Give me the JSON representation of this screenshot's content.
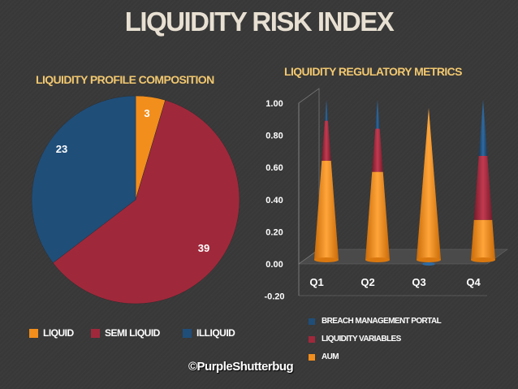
{
  "title": "LIQUIDITY RISK INDEX",
  "copyright": "©PurpleShutterbug",
  "colors": {
    "liquid": "#f28e1c",
    "semi_liquid": "#a0283b",
    "illiquid": "#1f4e79",
    "text": "#ffffff",
    "subtitle": "#f2c870"
  },
  "chart_data": [
    {
      "type": "pie",
      "title": "LIQUIDITY PROFILE COMPOSITION",
      "labels": [
        "LIQUID",
        "SEMI LIQUID",
        "ILLIQUID"
      ],
      "values": [
        3,
        39,
        23
      ],
      "data_labels": [
        "3",
        "39",
        "23"
      ],
      "legend": "bottom"
    },
    {
      "type": "bar",
      "variant": "stacked-cone-3d",
      "title": "LIQUIDITY  REGULATORY METRICS",
      "categories": [
        "Q1",
        "Q2",
        "Q3",
        "Q4"
      ],
      "series": [
        {
          "name": "AUM",
          "values": [
            0.62,
            0.55,
            0.95,
            0.25
          ]
        },
        {
          "name": "LIQUIDITY VARIABLES",
          "values": [
            0.25,
            0.27,
            0.0,
            0.4
          ]
        },
        {
          "name": "BREACH MANAGEMENT PORTAL",
          "values": [
            0.13,
            0.18,
            -0.02,
            0.35
          ]
        }
      ],
      "ylim": [
        -0.2,
        1.0
      ],
      "yticks": [
        "-0.20",
        "0.00",
        "0.20",
        "0.40",
        "0.60",
        "0.80",
        "1.00"
      ],
      "grid": false,
      "legend": "bottom"
    }
  ]
}
